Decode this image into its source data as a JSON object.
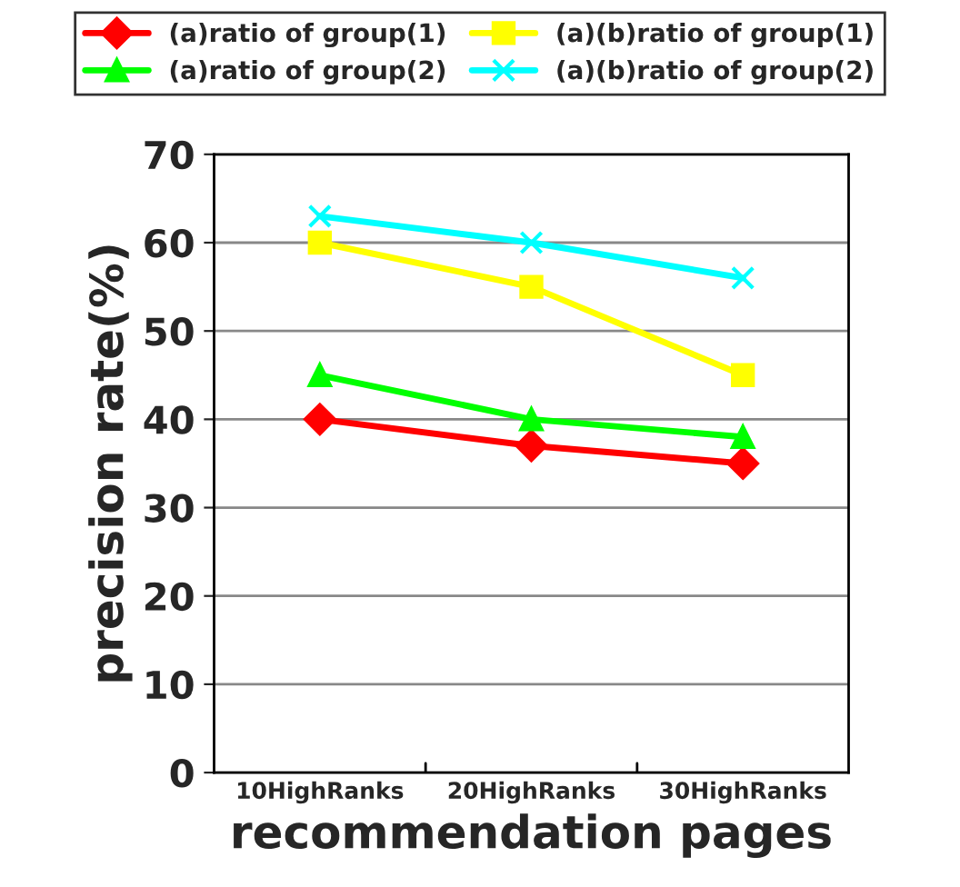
{
  "chart_data": {
    "type": "line",
    "xlabel": "recommendation pages",
    "ylabel": "precision rate(%)",
    "categories": [
      "10HighRanks",
      "20HighRanks",
      "30HighRanks"
    ],
    "series": [
      {
        "name": "(a)ratio of group(1)",
        "color": "#ff0000",
        "marker": "diamond",
        "values": [
          40,
          37,
          35
        ]
      },
      {
        "name": "(a)ratio of group(2)",
        "color": "#00ff00",
        "marker": "triangle",
        "values": [
          45,
          40,
          38
        ]
      },
      {
        "name": "(a)(b)ratio of group(1)",
        "color": "#ffff00",
        "marker": "square",
        "values": [
          60,
          55,
          45
        ]
      },
      {
        "name": "(a)(b)ratio of group(2)",
        "color": "#00ffff",
        "marker": "cross",
        "values": [
          63,
          60,
          56
        ]
      }
    ],
    "ylim": [
      0,
      70
    ],
    "yticks": [
      0,
      10,
      20,
      30,
      40,
      50,
      60,
      70
    ],
    "grid": "y",
    "legend": "top",
    "line_style": "solid"
  }
}
